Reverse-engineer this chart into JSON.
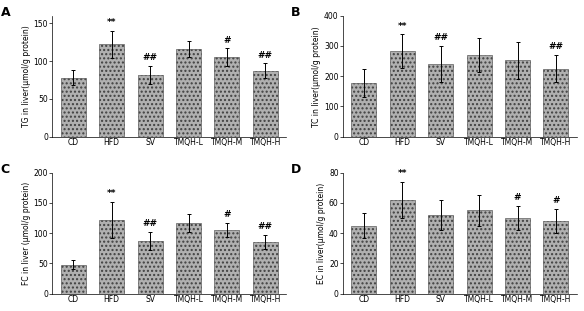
{
  "panels": [
    {
      "label": "A",
      "ylabel": "TG in liver(μmol/g protein)",
      "ylim": [
        0,
        160
      ],
      "yticks": [
        0,
        50,
        100,
        150
      ],
      "categories": [
        "CD",
        "HFD",
        "SV",
        "TMQH-L",
        "TMQH-M",
        "TMQH-H"
      ],
      "values": [
        78,
        122,
        82,
        116,
        105,
        87
      ],
      "errors": [
        10,
        18,
        12,
        10,
        12,
        10
      ],
      "annotations": [
        "",
        "**",
        "##",
        "",
        "#",
        "##"
      ]
    },
    {
      "label": "B",
      "ylabel": "TC in liver(μmol/g protein)",
      "ylim": [
        0,
        400
      ],
      "yticks": [
        0,
        100,
        200,
        300,
        400
      ],
      "categories": [
        "CD",
        "HFD",
        "SV",
        "TMQH-L",
        "TMQH-M",
        "TMQH-H"
      ],
      "values": [
        178,
        283,
        240,
        270,
        252,
        225
      ],
      "errors": [
        45,
        55,
        60,
        55,
        60,
        45
      ],
      "annotations": [
        "",
        "**",
        "##",
        "",
        "",
        "##"
      ]
    },
    {
      "label": "C",
      "ylabel": "FC in liver (μmol/g protein)",
      "ylim": [
        0,
        200
      ],
      "yticks": [
        0,
        50,
        100,
        150,
        200
      ],
      "categories": [
        "CD",
        "HFD",
        "SV",
        "TMQH-L",
        "TMQH-M",
        "TMQH-H"
      ],
      "values": [
        48,
        122,
        87,
        117,
        105,
        85
      ],
      "errors": [
        8,
        30,
        15,
        15,
        12,
        12
      ],
      "annotations": [
        "",
        "**",
        "##",
        "",
        "#",
        "##"
      ]
    },
    {
      "label": "D",
      "ylabel": "EC in liver(μmol/g protein)",
      "ylim": [
        0,
        80
      ],
      "yticks": [
        0,
        20,
        40,
        60,
        80
      ],
      "categories": [
        "CD",
        "HFD",
        "SV",
        "TMQH-L",
        "TMQH-M",
        "TMQH-H"
      ],
      "values": [
        45,
        62,
        52,
        55,
        50,
        48
      ],
      "errors": [
        8,
        12,
        10,
        10,
        8,
        8
      ],
      "annotations": [
        "",
        "**",
        "",
        "",
        "#",
        "#"
      ]
    }
  ],
  "bar_color": "#b0b0b0",
  "bar_edgecolor": "#404040",
  "fig_background": "#ffffff",
  "ax_background": "#ffffff",
  "fontsize": 5.5,
  "ylabel_fontsize": 5.5,
  "annotation_fontsize": 6.5,
  "panel_label_fontsize": 9,
  "bar_width": 0.65
}
